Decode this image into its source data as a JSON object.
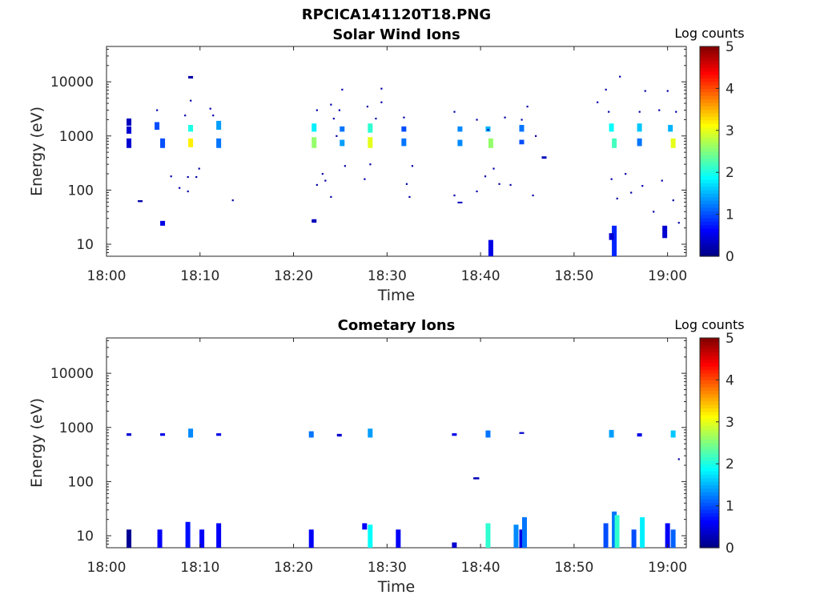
{
  "figure_title": "RPCICA141120T18.PNG",
  "chart_data": [
    {
      "type": "heatmap",
      "title": "Solar Wind Ions",
      "xlabel": "Time",
      "ylabel": "Energy (eV)",
      "yscale": "log",
      "xlim": [
        "18:00",
        "19:02"
      ],
      "ylim": [
        6,
        45000
      ],
      "x_ticks": [
        "18:00",
        "18:10",
        "18:20",
        "18:30",
        "18:40",
        "18:50",
        "19:00"
      ],
      "y_ticks": [
        "10",
        "100",
        "1000",
        "10000"
      ],
      "colorbar": {
        "label": "Log counts",
        "range": [
          0,
          5
        ],
        "ticks": [
          "0",
          "1",
          "2",
          "3",
          "4",
          "5"
        ],
        "colormap": "jet"
      },
      "cells": [
        {
          "t": 18.04,
          "e1": 1550,
          "e2": 2100,
          "v": 0.3
        },
        {
          "t": 18.04,
          "e1": 1100,
          "e2": 1500,
          "v": 0.4
        },
        {
          "t": 18.04,
          "e1": 600,
          "e2": 900,
          "v": 0.4
        },
        {
          "t": 18.06,
          "e1": 60,
          "e2": 65,
          "v": 0.2
        },
        {
          "t": 18.09,
          "e1": 1300,
          "e2": 1800,
          "v": 1.0
        },
        {
          "t": 18.1,
          "e1": 600,
          "e2": 900,
          "v": 1.0
        },
        {
          "t": 18.1,
          "e1": 22,
          "e2": 27,
          "v": 0.5
        },
        {
          "t": 18.15,
          "e1": 1200,
          "e2": 1600,
          "v": 2.0
        },
        {
          "t": 18.15,
          "e1": 620,
          "e2": 900,
          "v": 3.2
        },
        {
          "t": 18.15,
          "e1": 11500,
          "e2": 12800,
          "v": 0.2
        },
        {
          "t": 18.2,
          "e1": 1300,
          "e2": 1900,
          "v": 1.4
        },
        {
          "t": 18.2,
          "e1": 600,
          "e2": 900,
          "v": 1.2
        },
        {
          "t": 18.37,
          "e1": 1200,
          "e2": 1700,
          "v": 1.8
        },
        {
          "t": 18.37,
          "e1": 600,
          "e2": 950,
          "v": 2.6
        },
        {
          "t": 18.37,
          "e1": 25,
          "e2": 29,
          "v": 0.3
        },
        {
          "t": 18.42,
          "e1": 1200,
          "e2": 1500,
          "v": 1.2
        },
        {
          "t": 18.42,
          "e1": 650,
          "e2": 850,
          "v": 1.4
        },
        {
          "t": 18.47,
          "e1": 1150,
          "e2": 1700,
          "v": 2.1
        },
        {
          "t": 18.47,
          "e1": 600,
          "e2": 950,
          "v": 3.0
        },
        {
          "t": 18.53,
          "e1": 1200,
          "e2": 1500,
          "v": 1.0
        },
        {
          "t": 18.53,
          "e1": 650,
          "e2": 900,
          "v": 1.2
        },
        {
          "t": 18.63,
          "e1": 1200,
          "e2": 1500,
          "v": 1.3
        },
        {
          "t": 18.63,
          "e1": 650,
          "e2": 850,
          "v": 1.3
        },
        {
          "t": 18.63,
          "e1": 57,
          "e2": 61,
          "v": 0.3
        },
        {
          "t": 18.68,
          "e1": 1200,
          "e2": 1500,
          "v": 1.5
        },
        {
          "t": 18.685,
          "e1": 600,
          "e2": 900,
          "v": 2.6
        },
        {
          "t": 18.685,
          "e1": 6,
          "e2": 12,
          "v": 0.5
        },
        {
          "t": 18.74,
          "e1": 1200,
          "e2": 1600,
          "v": 1.2
        },
        {
          "t": 18.74,
          "e1": 700,
          "e2": 850,
          "v": 1.0
        },
        {
          "t": 18.9,
          "e1": 1200,
          "e2": 1700,
          "v": 1.9
        },
        {
          "t": 18.905,
          "e1": 600,
          "e2": 900,
          "v": 2.2
        },
        {
          "t": 18.905,
          "e1": 6,
          "e2": 22,
          "v": 0.8
        },
        {
          "t": 18.95,
          "e1": 1200,
          "e2": 1700,
          "v": 1.6
        },
        {
          "t": 18.95,
          "e1": 650,
          "e2": 900,
          "v": 1.2
        },
        {
          "t": 19.005,
          "e1": 1200,
          "e2": 1600,
          "v": 1.5
        },
        {
          "t": 19.01,
          "e1": 600,
          "e2": 900,
          "v": 3.0
        },
        {
          "t": 18.995,
          "e1": 13,
          "e2": 22,
          "v": 0.4
        },
        {
          "t": 18.9,
          "e1": 12,
          "e2": 16,
          "v": 0.4
        },
        {
          "t": 18.78,
          "e1": 380,
          "e2": 420,
          "v": 0.3
        }
      ],
      "points": [
        {
          "t": 18.09,
          "e": 3000
        },
        {
          "t": 18.14,
          "e": 2400
        },
        {
          "t": 18.15,
          "e": 4500
        },
        {
          "t": 18.145,
          "e": 175
        },
        {
          "t": 18.16,
          "e": 175
        },
        {
          "t": 18.165,
          "e": 250
        },
        {
          "t": 18.185,
          "e": 3200
        },
        {
          "t": 18.19,
          "e": 2400
        },
        {
          "t": 18.225,
          "e": 65
        },
        {
          "t": 18.115,
          "e": 180
        },
        {
          "t": 18.13,
          "e": 110
        },
        {
          "t": 18.145,
          "e": 95
        },
        {
          "t": 18.375,
          "e": 3000
        },
        {
          "t": 18.375,
          "e": 125
        },
        {
          "t": 18.385,
          "e": 200
        },
        {
          "t": 18.39,
          "e": 150
        },
        {
          "t": 18.4,
          "e": 3800
        },
        {
          "t": 18.405,
          "e": 2100
        },
        {
          "t": 18.4,
          "e": 75
        },
        {
          "t": 18.41,
          "e": 1000
        },
        {
          "t": 18.415,
          "e": 3000
        },
        {
          "t": 18.42,
          "e": 7200
        },
        {
          "t": 18.425,
          "e": 280
        },
        {
          "t": 18.46,
          "e": 160
        },
        {
          "t": 18.465,
          "e": 3500
        },
        {
          "t": 18.47,
          "e": 300
        },
        {
          "t": 18.48,
          "e": 2100
        },
        {
          "t": 18.49,
          "e": 7500
        },
        {
          "t": 18.49,
          "e": 4200
        },
        {
          "t": 18.53,
          "e": 2200
        },
        {
          "t": 18.535,
          "e": 130
        },
        {
          "t": 18.54,
          "e": 75
        },
        {
          "t": 18.545,
          "e": 280
        },
        {
          "t": 18.62,
          "e": 2800
        },
        {
          "t": 18.66,
          "e": 2000
        },
        {
          "t": 18.675,
          "e": 180
        },
        {
          "t": 18.68,
          "e": 1300
        },
        {
          "t": 18.69,
          "e": 250
        },
        {
          "t": 18.7,
          "e": 130
        },
        {
          "t": 18.71,
          "e": 2200
        },
        {
          "t": 18.72,
          "e": 125
        },
        {
          "t": 18.74,
          "e": 2000
        },
        {
          "t": 18.75,
          "e": 3500
        },
        {
          "t": 18.76,
          "e": 80
        },
        {
          "t": 18.765,
          "e": 1000
        },
        {
          "t": 18.875,
          "e": 4200
        },
        {
          "t": 18.89,
          "e": 7200
        },
        {
          "t": 18.895,
          "e": 2800
        },
        {
          "t": 18.9,
          "e": 160
        },
        {
          "t": 18.91,
          "e": 70
        },
        {
          "t": 18.915,
          "e": 12500
        },
        {
          "t": 18.925,
          "e": 200
        },
        {
          "t": 18.935,
          "e": 90
        },
        {
          "t": 18.95,
          "e": 2800
        },
        {
          "t": 18.955,
          "e": 120
        },
        {
          "t": 18.96,
          "e": 6800
        },
        {
          "t": 18.975,
          "e": 40
        },
        {
          "t": 18.985,
          "e": 3000
        },
        {
          "t": 18.99,
          "e": 150
        },
        {
          "t": 19.0,
          "e": 6800
        },
        {
          "t": 19.01,
          "e": 65
        },
        {
          "t": 19.015,
          "e": 2800
        },
        {
          "t": 19.02,
          "e": 25
        },
        {
          "t": 18.62,
          "e": 80
        },
        {
          "t": 18.66,
          "e": 95
        }
      ]
    },
    {
      "type": "heatmap",
      "title": "Cometary Ions",
      "xlabel": "Time",
      "ylabel": "Energy (eV)",
      "yscale": "log",
      "xlim": [
        "18:00",
        "19:02"
      ],
      "ylim": [
        6,
        45000
      ],
      "x_ticks": [
        "18:00",
        "18:10",
        "18:20",
        "18:30",
        "18:40",
        "18:50",
        "19:00"
      ],
      "y_ticks": [
        "10",
        "100",
        "1000",
        "10000"
      ],
      "colorbar": {
        "label": "Log counts",
        "range": [
          0,
          5
        ],
        "ticks": [
          "0",
          "1",
          "2",
          "3",
          "4",
          "5"
        ],
        "colormap": "jet"
      },
      "cells": [
        {
          "t": 18.04,
          "e1": 700,
          "e2": 780,
          "v": 0.4
        },
        {
          "t": 18.04,
          "e1": 6,
          "e2": 13,
          "v": 0.1
        },
        {
          "t": 18.095,
          "e1": 6,
          "e2": 13,
          "v": 0.6
        },
        {
          "t": 18.1,
          "e1": 700,
          "e2": 780,
          "v": 0.5
        },
        {
          "t": 18.15,
          "e1": 650,
          "e2": 950,
          "v": 1.3
        },
        {
          "t": 18.145,
          "e1": 6,
          "e2": 18,
          "v": 0.7
        },
        {
          "t": 18.17,
          "e1": 6,
          "e2": 13,
          "v": 0.6
        },
        {
          "t": 18.2,
          "e1": 700,
          "e2": 780,
          "v": 0.5
        },
        {
          "t": 18.2,
          "e1": 6,
          "e2": 17,
          "v": 0.6
        },
        {
          "t": 18.365,
          "e1": 650,
          "e2": 850,
          "v": 1.2
        },
        {
          "t": 18.365,
          "e1": 6,
          "e2": 13,
          "v": 0.6
        },
        {
          "t": 18.415,
          "e1": 680,
          "e2": 760,
          "v": 0.4
        },
        {
          "t": 18.47,
          "e1": 650,
          "e2": 950,
          "v": 1.4
        },
        {
          "t": 18.46,
          "e1": 13,
          "e2": 17,
          "v": 0.6
        },
        {
          "t": 18.47,
          "e1": 6,
          "e2": 16,
          "v": 1.9
        },
        {
          "t": 18.52,
          "e1": 6,
          "e2": 13,
          "v": 0.6
        },
        {
          "t": 18.62,
          "e1": 700,
          "e2": 780,
          "v": 0.5
        },
        {
          "t": 18.62,
          "e1": 6,
          "e2": 7.5,
          "v": 0.4
        },
        {
          "t": 18.66,
          "e1": 110,
          "e2": 120,
          "v": 0.3
        },
        {
          "t": 18.68,
          "e1": 650,
          "e2": 880,
          "v": 1.2
        },
        {
          "t": 18.68,
          "e1": 6,
          "e2": 17,
          "v": 2.1
        },
        {
          "t": 18.73,
          "e1": 6,
          "e2": 16,
          "v": 1.3
        },
        {
          "t": 18.74,
          "e1": 6,
          "e2": 13,
          "v": 0.5
        },
        {
          "t": 18.74,
          "e1": 760,
          "e2": 820,
          "v": 0.4
        },
        {
          "t": 18.745,
          "e1": 6,
          "e2": 22,
          "v": 1.2
        },
        {
          "t": 18.89,
          "e1": 6,
          "e2": 17,
          "v": 1.0
        },
        {
          "t": 18.9,
          "e1": 650,
          "e2": 900,
          "v": 1.4
        },
        {
          "t": 18.905,
          "e1": 6,
          "e2": 28,
          "v": 1.2
        },
        {
          "t": 18.91,
          "e1": 6,
          "e2": 24,
          "v": 2.1
        },
        {
          "t": 18.94,
          "e1": 6,
          "e2": 13,
          "v": 1.0
        },
        {
          "t": 18.955,
          "e1": 6,
          "e2": 22,
          "v": 1.8
        },
        {
          "t": 18.95,
          "e1": 680,
          "e2": 780,
          "v": 0.5
        },
        {
          "t": 19.0,
          "e1": 6,
          "e2": 17,
          "v": 0.6
        },
        {
          "t": 19.01,
          "e1": 650,
          "e2": 880,
          "v": 1.6
        },
        {
          "t": 19.01,
          "e1": 6,
          "e2": 13,
          "v": 1.1
        }
      ],
      "points": [
        {
          "t": 19.02,
          "e": 260
        },
        {
          "t": 18.655,
          "e": 115
        }
      ]
    }
  ]
}
